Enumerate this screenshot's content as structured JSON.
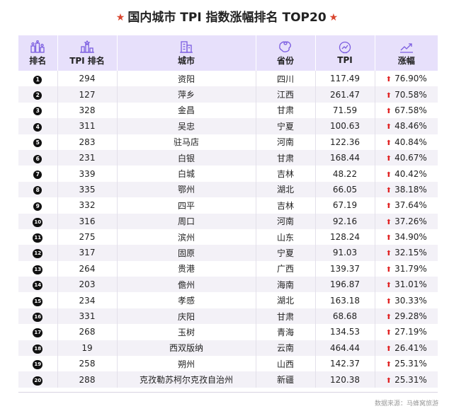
{
  "title": "国内城市 TPI 指数涨幅排名 TOP20",
  "title_star": "★",
  "up_arrow": "⬆",
  "headers": {
    "rank": "排名",
    "tpi_rank": "TPI 排名",
    "city": "城市",
    "province": "省份",
    "tpi": "TPI",
    "change": "涨幅"
  },
  "icons": {
    "rank": "bar-podium-icon",
    "tpi_rank": "ranking-chart-icon",
    "city": "buildings-icon",
    "province": "map-region-icon",
    "tpi": "speedometer-icon",
    "change": "trend-up-icon"
  },
  "colors": {
    "header_bg": "#e7e0fb",
    "icon": "#7b5de0",
    "stripe": "#f3f1f7",
    "up": "#e02020",
    "star": "#d9462f"
  },
  "rows": [
    {
      "rank": "1",
      "tpi_rank": "294",
      "city": "资阳",
      "province": "四川",
      "tpi": "117.49",
      "change": "76.90%"
    },
    {
      "rank": "2",
      "tpi_rank": "127",
      "city": "萍乡",
      "province": "江西",
      "tpi": "261.47",
      "change": "70.58%"
    },
    {
      "rank": "3",
      "tpi_rank": "328",
      "city": "金昌",
      "province": "甘肃",
      "tpi": "71.59",
      "change": "67.58%"
    },
    {
      "rank": "4",
      "tpi_rank": "311",
      "city": "吴忠",
      "province": "宁夏",
      "tpi": "100.63",
      "change": "48.46%"
    },
    {
      "rank": "5",
      "tpi_rank": "283",
      "city": "驻马店",
      "province": "河南",
      "tpi": "122.36",
      "change": "40.84%"
    },
    {
      "rank": "6",
      "tpi_rank": "231",
      "city": "白银",
      "province": "甘肃",
      "tpi": "168.44",
      "change": "40.67%"
    },
    {
      "rank": "7",
      "tpi_rank": "339",
      "city": "白城",
      "province": "吉林",
      "tpi": "48.22",
      "change": "40.42%"
    },
    {
      "rank": "8",
      "tpi_rank": "335",
      "city": "鄂州",
      "province": "湖北",
      "tpi": "66.05",
      "change": "38.18%"
    },
    {
      "rank": "9",
      "tpi_rank": "332",
      "city": "四平",
      "province": "吉林",
      "tpi": "67.19",
      "change": "37.64%"
    },
    {
      "rank": "10",
      "tpi_rank": "316",
      "city": "周口",
      "province": "河南",
      "tpi": "92.16",
      "change": "37.26%"
    },
    {
      "rank": "11",
      "tpi_rank": "275",
      "city": "滨州",
      "province": "山东",
      "tpi": "128.24",
      "change": "34.90%"
    },
    {
      "rank": "12",
      "tpi_rank": "317",
      "city": "固原",
      "province": "宁夏",
      "tpi": "91.03",
      "change": "32.15%"
    },
    {
      "rank": "13",
      "tpi_rank": "264",
      "city": "贵港",
      "province": "广西",
      "tpi": "139.37",
      "change": "31.79%"
    },
    {
      "rank": "14",
      "tpi_rank": "203",
      "city": "儋州",
      "province": "海南",
      "tpi": "196.87",
      "change": "31.01%"
    },
    {
      "rank": "15",
      "tpi_rank": "234",
      "city": "孝感",
      "province": "湖北",
      "tpi": "163.18",
      "change": "30.33%"
    },
    {
      "rank": "16",
      "tpi_rank": "331",
      "city": "庆阳",
      "province": "甘肃",
      "tpi": "68.68",
      "change": "29.28%"
    },
    {
      "rank": "17",
      "tpi_rank": "268",
      "city": "玉树",
      "province": "青海",
      "tpi": "134.53",
      "change": "27.19%"
    },
    {
      "rank": "18",
      "tpi_rank": "19",
      "city": "西双版纳",
      "province": "云南",
      "tpi": "464.44",
      "change": "26.41%"
    },
    {
      "rank": "19",
      "tpi_rank": "258",
      "city": "朔州",
      "province": "山西",
      "tpi": "142.37",
      "change": "25.31%"
    },
    {
      "rank": "20",
      "tpi_rank": "288",
      "city": "克孜勒苏柯尔克孜自治州",
      "province": "新疆",
      "tpi": "120.38",
      "change": "25.31%"
    }
  ],
  "source": "数据来源：马蜂窝旅游"
}
